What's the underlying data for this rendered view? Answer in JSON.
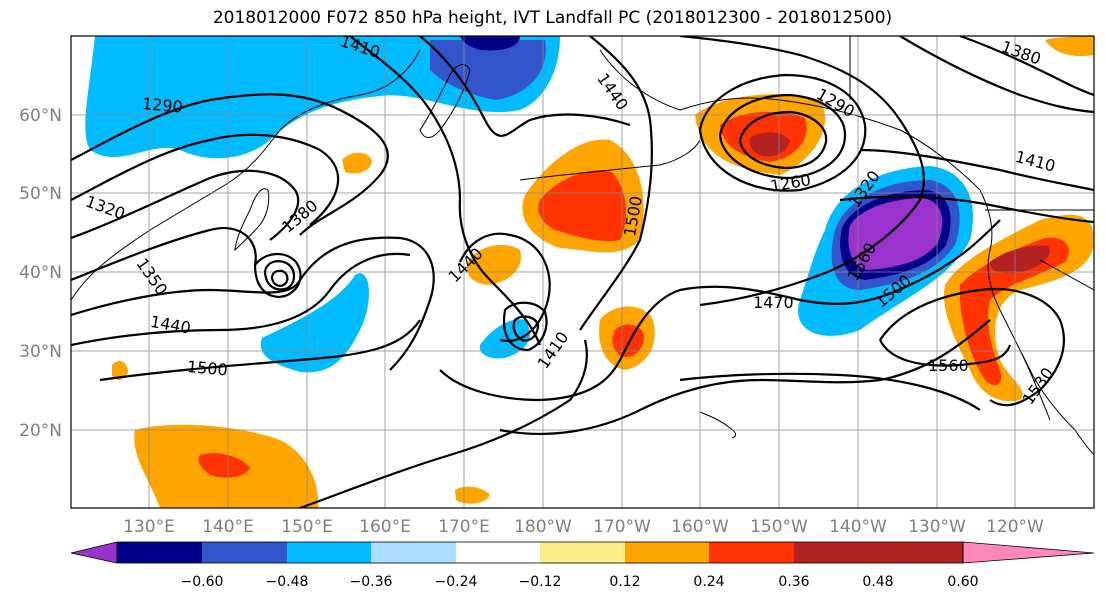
{
  "title": "2018012000 F072 850 hPa height, IVT Landfall PC (2018012300 - 2018012500)",
  "lat_labels": [
    "60°N",
    "50°N",
    "40°N",
    "30°N",
    "20°N"
  ],
  "lon_labels": [
    "130°E",
    "140°E",
    "150°E",
    "160°E",
    "170°E",
    "180°W",
    "170°W",
    "160°W",
    "150°W",
    "140°W",
    "130°W",
    "120°W"
  ],
  "contour_labels": [
    "1410",
    "1380",
    "1290",
    "1290",
    "1320",
    "1380",
    "1350",
    "1440",
    "1500",
    "1440",
    "1410",
    "1500",
    "1440",
    "1260",
    "1320",
    "1410",
    "1560",
    "1470",
    "1500",
    "1560",
    "1530"
  ],
  "colorbar": {
    "colors": [
      "#9933cc",
      "#000088",
      "#3355cc",
      "#00bbff",
      "#aaddff",
      "#ffffff",
      "#ffee88",
      "#ffa500",
      "#ff3300",
      "#b22222",
      "#ff88bb"
    ],
    "tick_labels": [
      "−0.60",
      "−0.48",
      "−0.36",
      "−0.24",
      "−0.12",
      "0.12",
      "0.24",
      "0.36",
      "0.48",
      "0.60"
    ]
  }
}
